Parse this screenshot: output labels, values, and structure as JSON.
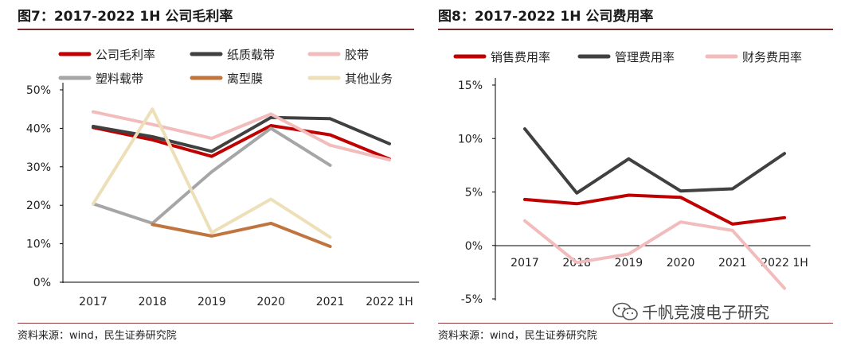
{
  "chart_data": [
    {
      "type": "line",
      "title": "图7：2017-2022 1H 公司毛利率",
      "categories": [
        "2017",
        "2018",
        "2019",
        "2020",
        "2021",
        "2022 1H"
      ],
      "yticks": [
        "0%",
        "10%",
        "20%",
        "30%",
        "40%",
        "50%"
      ],
      "ylim": [
        0,
        50
      ],
      "xlabel": "",
      "ylabel": "",
      "legend_position": "top",
      "source": "资料来源：wind，民生证券研究院",
      "series": [
        {
          "name": "公司毛利率",
          "color": "#c00000",
          "values": [
            40.2,
            37.0,
            32.7,
            40.7,
            38.3,
            32.0
          ]
        },
        {
          "name": "纸质载带",
          "color": "#404040",
          "values": [
            40.5,
            37.8,
            34.0,
            42.8,
            42.5,
            36.0
          ]
        },
        {
          "name": "胶带",
          "color": "#f2bcbc",
          "values": [
            44.3,
            41.0,
            37.4,
            43.7,
            35.6,
            31.8
          ]
        },
        {
          "name": "塑料载带",
          "color": "#a6a6a6",
          "values": [
            20.4,
            15.3,
            28.7,
            40.0,
            30.4,
            null
          ]
        },
        {
          "name": "离型膜",
          "color": "#c0753f",
          "values": [
            null,
            15.0,
            12.0,
            15.3,
            9.3,
            null
          ]
        },
        {
          "name": "其他业务",
          "color": "#ede0b8",
          "values": [
            20.4,
            45.0,
            12.9,
            21.6,
            11.7,
            null
          ]
        }
      ]
    },
    {
      "type": "line",
      "title": "图8：2017-2022 1H 公司费用率",
      "categories": [
        "2017",
        "2018",
        "2019",
        "2020",
        "2021",
        "2022 1H"
      ],
      "yticks": [
        "-5%",
        "0%",
        "5%",
        "10%",
        "15%"
      ],
      "ylim": [
        -5,
        15
      ],
      "xlabel": "",
      "ylabel": "",
      "legend_position": "top",
      "source": "资料来源：wind，民生证券研究院",
      "series": [
        {
          "name": "销售费用率",
          "color": "#c00000",
          "values": [
            4.3,
            3.9,
            4.7,
            4.5,
            2.0,
            2.6
          ]
        },
        {
          "name": "管理费用率",
          "color": "#404040",
          "values": [
            10.9,
            4.9,
            8.1,
            5.1,
            5.3,
            8.6
          ]
        },
        {
          "name": "财务费用率",
          "color": "#f2bcbc",
          "values": [
            2.3,
            -1.6,
            -0.8,
            2.2,
            1.4,
            -4.0
          ]
        }
      ]
    }
  ],
  "watermark": {
    "text": "千帆竞渡电子研究",
    "icon": "wechat-icon"
  }
}
